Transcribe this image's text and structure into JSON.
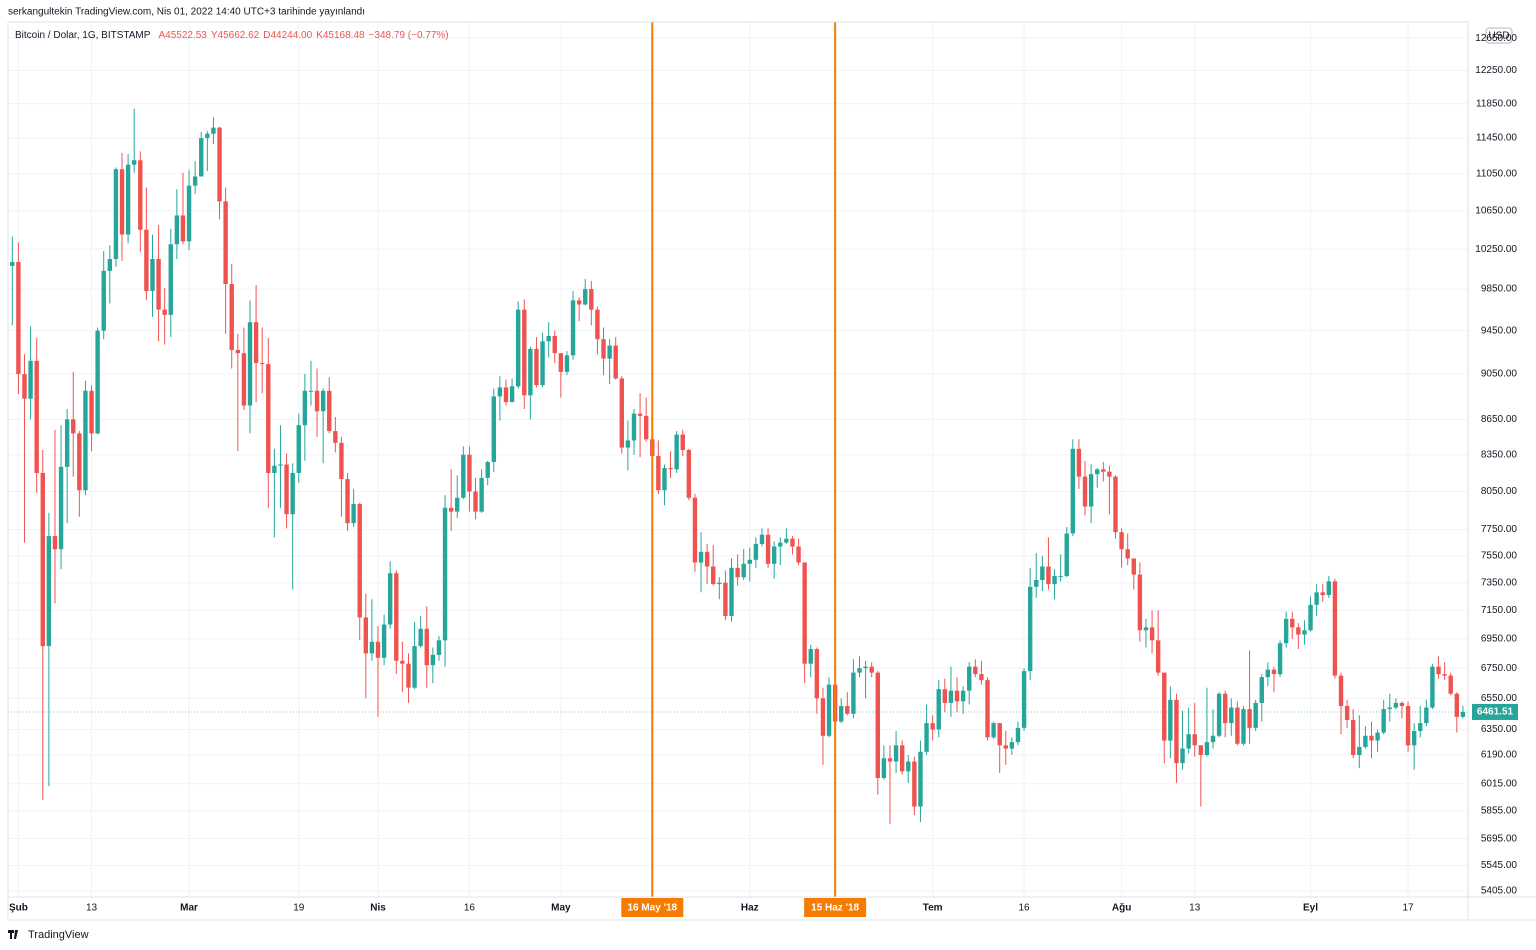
{
  "header": "serkangultekin TradingView.com, Nis 01, 2022 14:40 UTC+3 tarihinde yayınlandı",
  "footer": "TradingView",
  "chart_data": {
    "type": "candlestick",
    "symbol": "Bitcoin / Dolar, 1G, BITSTAMP",
    "legend_values": [
      "A45522.53",
      "Y45662.62",
      "D44244.00",
      "K45168.48",
      "−348.79 (−0.77%)"
    ],
    "currency": "USD",
    "up_color": "#26a69a",
    "down_color": "#ef5350",
    "log_scale": true,
    "grid": true,
    "open": [
      10080,
      10120,
      9050,
      8830,
      9170,
      8200,
      6900,
      7700,
      7600,
      8250,
      8650,
      8530,
      8060,
      8900,
      8530,
      9450,
      10030,
      10150,
      11100,
      10400,
      11150,
      11200,
      10450,
      9830,
      10150,
      9650,
      9600,
      10300,
      10600,
      10330,
      10920,
      11020,
      11450,
      11500,
      11570,
      10750,
      9900,
      9270,
      9240,
      8770,
      9530,
      9150,
      9140,
      8200,
      8260,
      8270,
      7870,
      8200,
      8600,
      8900,
      8900,
      8720,
      8900,
      8550,
      8450,
      8150,
      7800,
      7950,
      7100,
      6850,
      6930,
      6820,
      7050,
      7420,
      6800,
      6780,
      6620,
      6900,
      7020,
      6770,
      6840,
      6940,
      7920,
      7890,
      8000,
      8350,
      8050,
      7890,
      8160,
      8290,
      8850,
      8930,
      8800,
      8940,
      9650,
      8860,
      9280,
      8950,
      9350,
      9400,
      9240,
      9070,
      9220,
      9740,
      9700,
      9850,
      9650,
      9370,
      9190,
      9310,
      9010,
      8410,
      8470,
      8700,
      8680,
      8480,
      8340,
      8060,
      8240,
      8230,
      8520,
      8390,
      8000,
      7500,
      7580,
      7470,
      7340,
      7350,
      7110,
      7460,
      7390,
      7490,
      7520,
      7640,
      7710,
      7490,
      7620,
      7650,
      7680,
      7620,
      7500,
      6780,
      6880,
      6550,
      6310,
      6640,
      6400,
      6500,
      6450,
      6720,
      6750,
      6760,
      6720,
      6050,
      6170,
      6150,
      6250,
      6090,
      6150,
      5880,
      6210,
      6390,
      6350,
      6610,
      6520,
      6600,
      6530,
      6600,
      6760,
      6710,
      6670,
      6300,
      6390,
      6250,
      6230,
      6270,
      6360,
      6730,
      7320,
      7370,
      7470,
      7340,
      7400,
      7400,
      7720,
      8400,
      8170,
      7930,
      8190,
      8230,
      8210,
      8170,
      7730,
      7600,
      7530,
      7410,
      7010,
      7030,
      6940,
      6720,
      6280,
      6540,
      6140,
      6230,
      6320,
      6250,
      6190,
      6270,
      6310,
      6580,
      6390,
      6490,
      6260,
      6480,
      6360,
      6520,
      6690,
      6740,
      6710,
      6920,
      7090,
      7030,
      6980,
      7010,
      7190,
      7280,
      7260,
      7360,
      6700,
      6500,
      6410,
      6190,
      6240,
      6310,
      6280,
      6330,
      6480,
      6490,
      6520,
      6500,
      6250,
      6340,
      6390,
      6490,
      6760,
      6710,
      6700,
      6580,
      6430
    ],
    "high": [
      10380,
      10320,
      9230,
      9490,
      9380,
      8390,
      7880,
      8560,
      8600,
      8740,
      9070,
      8550,
      8990,
      8950,
      9480,
      10230,
      10290,
      11120,
      11280,
      11270,
      11790,
      11300,
      10900,
      10400,
      10500,
      9860,
      10460,
      10880,
      11060,
      11090,
      11190,
      11520,
      11530,
      11690,
      11580,
      10900,
      10100,
      9420,
      9480,
      9740,
      9890,
      9480,
      9380,
      8400,
      8600,
      8360,
      8280,
      8700,
      9050,
      9170,
      9100,
      8920,
      9020,
      8670,
      8500,
      8200,
      8070,
      7960,
      7270,
      7230,
      7040,
      7120,
      7510,
      7440,
      6930,
      6850,
      7070,
      7110,
      7180,
      6890,
      6970,
      8020,
      8230,
      8180,
      8420,
      8420,
      8160,
      8230,
      8300,
      8920,
      9030,
      9000,
      9010,
      9730,
      9750,
      9300,
      9390,
      9430,
      9530,
      9450,
      9240,
      9260,
      9830,
      9770,
      9950,
      9930,
      9680,
      9480,
      9370,
      9390,
      9030,
      8640,
      8740,
      8880,
      8840,
      8480,
      8470,
      8270,
      8380,
      8550,
      8560,
      8400,
      8030,
      7730,
      7640,
      7630,
      7390,
      7440,
      7530,
      7560,
      7600,
      7610,
      7690,
      7760,
      7760,
      7660,
      7690,
      7760,
      7700,
      7680,
      7500,
      6910,
      6890,
      6620,
      6690,
      6660,
      6550,
      6590,
      6810,
      6830,
      6800,
      6790,
      6730,
      6250,
      6250,
      6340,
      6280,
      6190,
      6180,
      6280,
      6510,
      6440,
      6670,
      6680,
      6760,
      6690,
      6630,
      6790,
      6810,
      6800,
      6690,
      6400,
      6390,
      6340,
      6300,
      6400,
      6750,
      7460,
      7570,
      7550,
      7690,
      7450,
      7560,
      7770,
      8480,
      8480,
      8300,
      8270,
      8240,
      8290,
      8260,
      8180,
      7760,
      7720,
      7530,
      7500,
      7090,
      7150,
      7150,
      6720,
      6630,
      6580,
      6470,
      6490,
      6520,
      6250,
      6620,
      6480,
      6590,
      6600,
      6550,
      6530,
      6500,
      6870,
      6540,
      6710,
      6790,
      6760,
      6940,
      7140,
      7140,
      7060,
      7080,
      7250,
      7340,
      7340,
      7400,
      7380,
      6720,
      6540,
      6480,
      6440,
      6370,
      6400,
      6350,
      6540,
      6580,
      6550,
      6530,
      6530,
      6390,
      6500,
      6540,
      6780,
      6830,
      6790,
      6720,
      6590,
      6500
    ],
    "low": [
      9500,
      8870,
      7650,
      8650,
      8040,
      5920,
      6000,
      7200,
      7450,
      7800,
      8170,
      7850,
      8020,
      8380,
      8520,
      9370,
      9710,
      10070,
      10130,
      10310,
      11060,
      10220,
      9740,
      9580,
      9350,
      9320,
      9390,
      10150,
      10300,
      10240,
      10830,
      11020,
      11080,
      11380,
      10560,
      9420,
      9100,
      8380,
      8730,
      8530,
      8800,
      8880,
      7920,
      7690,
      7920,
      7760,
      7300,
      8120,
      8300,
      8770,
      8500,
      8280,
      8530,
      8370,
      7850,
      7740,
      7770,
      6940,
      6550,
      6800,
      6430,
      6770,
      7020,
      6710,
      6590,
      6520,
      6610,
      6890,
      6620,
      6650,
      6800,
      6760,
      7740,
      7840,
      7990,
      7890,
      7830,
      7880,
      8100,
      8210,
      8640,
      8770,
      8800,
      8920,
      8740,
      8650,
      8930,
      8930,
      9200,
      9150,
      8840,
      9040,
      9180,
      9540,
      9690,
      9500,
      9230,
      9040,
      8960,
      9000,
      8360,
      8220,
      8350,
      8330,
      8460,
      8110,
      8030,
      7940,
      8160,
      8200,
      8340,
      7980,
      7430,
      7280,
      7340,
      7330,
      7230,
      7080,
      7070,
      7330,
      7370,
      7360,
      7460,
      7620,
      7460,
      7380,
      7480,
      7640,
      7560,
      7480,
      6650,
      6690,
      6450,
      6130,
      6300,
      6380,
      6390,
      6440,
      6420,
      6690,
      6550,
      6690,
      5950,
      6040,
      5780,
      6080,
      6070,
      6020,
      5830,
      5790,
      6190,
      6280,
      6300,
      6460,
      6430,
      6460,
      6450,
      6510,
      6690,
      6640,
      6280,
      6290,
      6080,
      6130,
      6190,
      6250,
      6340,
      6670,
      7240,
      7290,
      7300,
      7230,
      7360,
      7390,
      7700,
      8070,
      7860,
      7800,
      8080,
      8130,
      7870,
      7680,
      7460,
      7480,
      7300,
      6930,
      6890,
      6850,
      6700,
      6140,
      6170,
      6020,
      6100,
      6200,
      6180,
      5880,
      6180,
      6230,
      6300,
      6300,
      6310,
      6250,
      6250,
      6260,
      6340,
      6400,
      6630,
      6590,
      6690,
      6890,
      6950,
      6880,
      6910,
      7000,
      7110,
      7210,
      7240,
      6680,
      6320,
      6360,
      6170,
      6110,
      6230,
      6170,
      6210,
      6320,
      6400,
      6480,
      6420,
      6210,
      6100,
      6300,
      6370,
      6480,
      6680,
      6670,
      6570,
      6330,
      6420
    ],
    "close": [
      10120,
      9050,
      8830,
      9170,
      8200,
      6900,
      7700,
      7600,
      8250,
      8650,
      8530,
      8060,
      8900,
      8530,
      9450,
      10030,
      10150,
      11100,
      10400,
      11150,
      11200,
      10450,
      9830,
      10150,
      9650,
      9600,
      10300,
      10600,
      10330,
      10920,
      11020,
      11450,
      11500,
      11570,
      10750,
      9900,
      9270,
      9240,
      8770,
      9530,
      9150,
      9140,
      8200,
      8260,
      8270,
      7870,
      8200,
      8600,
      8900,
      8900,
      8720,
      8900,
      8550,
      8450,
      8150,
      7800,
      7950,
      7100,
      6850,
      6930,
      6820,
      7050,
      7420,
      6800,
      6780,
      6620,
      6900,
      7020,
      6770,
      6840,
      6940,
      7920,
      7890,
      8000,
      8350,
      8050,
      7890,
      8160,
      8290,
      8850,
      8930,
      8800,
      8940,
      9650,
      8860,
      9280,
      8950,
      9350,
      9400,
      9240,
      9070,
      9220,
      9740,
      9700,
      9850,
      9650,
      9370,
      9190,
      9310,
      9010,
      8410,
      8470,
      8700,
      8680,
      8480,
      8340,
      8060,
      8240,
      8230,
      8520,
      8390,
      8000,
      7500,
      7580,
      7470,
      7340,
      7350,
      7110,
      7460,
      7390,
      7490,
      7520,
      7640,
      7710,
      7490,
      7620,
      7650,
      7680,
      7620,
      7500,
      6780,
      6880,
      6550,
      6310,
      6640,
      6400,
      6500,
      6450,
      6720,
      6750,
      6760,
      6720,
      6050,
      6170,
      6150,
      6250,
      6090,
      6150,
      5880,
      6210,
      6390,
      6350,
      6610,
      6520,
      6600,
      6530,
      6600,
      6760,
      6710,
      6670,
      6300,
      6390,
      6250,
      6230,
      6270,
      6360,
      6730,
      7320,
      7370,
      7470,
      7340,
      7400,
      7400,
      7720,
      8400,
      8170,
      7930,
      8190,
      8230,
      8210,
      8170,
      7730,
      7600,
      7530,
      7410,
      7010,
      7030,
      6940,
      6720,
      6280,
      6540,
      6140,
      6230,
      6320,
      6250,
      6190,
      6270,
      6310,
      6580,
      6390,
      6490,
      6260,
      6480,
      6360,
      6520,
      6690,
      6740,
      6710,
      6920,
      7090,
      7030,
      6980,
      7010,
      7190,
      7280,
      7260,
      7360,
      6700,
      6500,
      6410,
      6190,
      6240,
      6310,
      6280,
      6330,
      6480,
      6490,
      6520,
      6500,
      6250,
      6340,
      6390,
      6490,
      6760,
      6710,
      6700,
      6580,
      6430,
      6461.51
    ],
    "ylim": [
      5373,
      12855
    ],
    "yticks": [
      {
        "value": 5405,
        "label": "5405.00"
      },
      {
        "value": 5545,
        "label": "5545.00"
      },
      {
        "value": 5695,
        "label": "5695.00"
      },
      {
        "value": 5855,
        "label": "5855.00"
      },
      {
        "value": 6015,
        "label": "6015.00"
      },
      {
        "value": 6190,
        "label": "6190.00"
      },
      {
        "value": 6350,
        "label": "6350.00"
      },
      {
        "value": 6550,
        "label": "6550.00"
      },
      {
        "value": 6750,
        "label": "6750.00"
      },
      {
        "value": 6950,
        "label": "6950.00"
      },
      {
        "value": 7150,
        "label": "7150.00"
      },
      {
        "value": 7350,
        "label": "7350.00"
      },
      {
        "value": 7550,
        "label": "7550.00"
      },
      {
        "value": 7750,
        "label": "7750.00"
      },
      {
        "value": 8050,
        "label": "8050.00"
      },
      {
        "value": 8350,
        "label": "8350.00"
      },
      {
        "value": 8650,
        "label": "8650.00"
      },
      {
        "value": 9050,
        "label": "9050.00"
      },
      {
        "value": 9450,
        "label": "9450.00"
      },
      {
        "value": 9850,
        "label": "9850.00"
      },
      {
        "value": 10250,
        "label": "10250.00"
      },
      {
        "value": 10650,
        "label": "10650.00"
      },
      {
        "value": 11050,
        "label": "11050.00"
      },
      {
        "value": 11450,
        "label": "11450.00"
      },
      {
        "value": 11850,
        "label": "11850.00"
      },
      {
        "value": 12250,
        "label": "12250.00"
      },
      {
        "value": 12650,
        "label": "12650.00"
      }
    ],
    "xticks": [
      {
        "value": 1,
        "label": "Şub"
      },
      {
        "value": 13,
        "label": "13"
      },
      {
        "value": 29,
        "label": "Mar"
      },
      {
        "value": 47,
        "label": "19"
      },
      {
        "value": 60,
        "label": "Nis"
      },
      {
        "value": 75,
        "label": "16"
      },
      {
        "value": 90,
        "label": "May"
      },
      {
        "value": 121,
        "label": "Haz"
      },
      {
        "value": 151,
        "label": "Tem"
      },
      {
        "value": 166,
        "label": "16"
      },
      {
        "value": 182,
        "label": "Ağu"
      },
      {
        "value": 194,
        "label": "13"
      },
      {
        "value": 213,
        "label": "Eyl"
      },
      {
        "value": 229,
        "label": "17"
      }
    ],
    "markers": [
      {
        "x": 105,
        "label": "16 May '18"
      },
      {
        "x": 135,
        "label": "15 Haz '18"
      }
    ],
    "marker_color": "#f57c00"
  }
}
